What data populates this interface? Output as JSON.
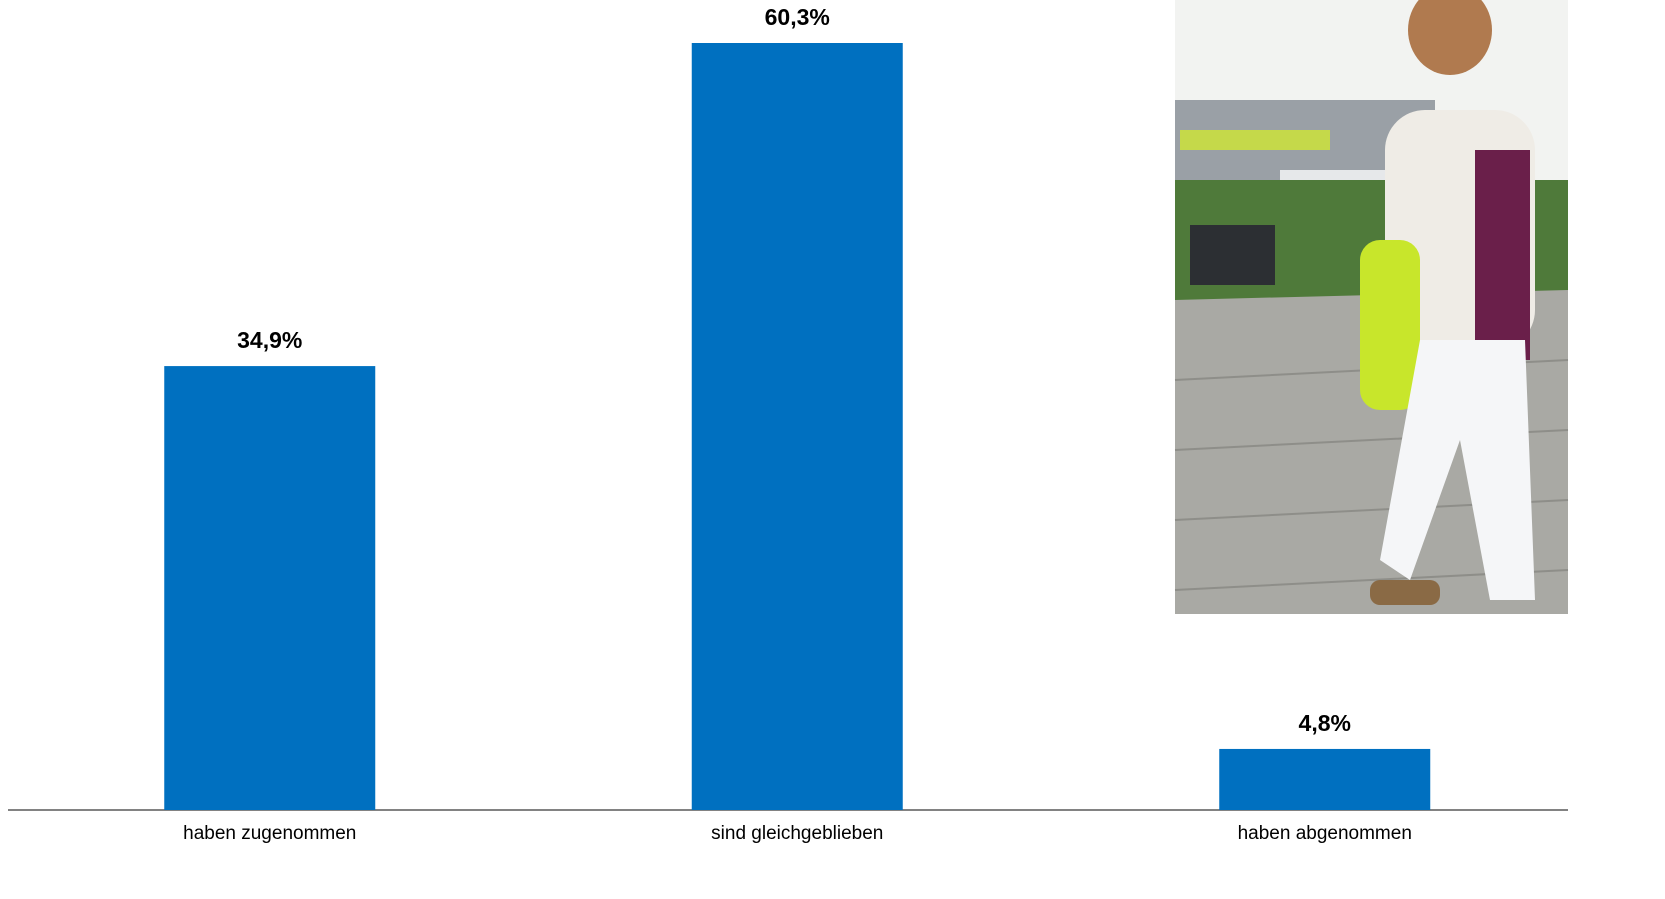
{
  "chart_data": {
    "type": "bar",
    "categories": [
      "haben zugenommen",
      "sind gleichgeblieben",
      "haben abgenommen"
    ],
    "values": [
      34.9,
      60.3,
      4.8
    ],
    "value_labels": [
      "34,9%",
      "60,3%",
      "4,8%"
    ],
    "color": "#0070c0"
  }
}
